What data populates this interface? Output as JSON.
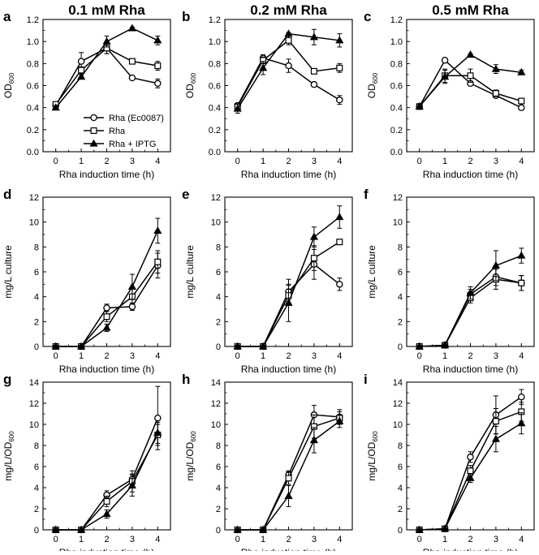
{
  "figure": {
    "legend": [
      {
        "label": "Rha (Ec0087)",
        "marker": "circle-open"
      },
      {
        "label": "Rha",
        "marker": "square-open"
      },
      {
        "label": "Rha + IPTG",
        "marker": "triangle-filled"
      }
    ],
    "colors": {
      "line": "#000000",
      "background": "#ffffff"
    }
  },
  "chart_data": [
    {
      "type": "line",
      "panel": "a",
      "title": "0.1 mM Rha",
      "xlabel": "Rha induction time (h)",
      "ylabel": "OD",
      "ylabel_sub": "600",
      "x": [
        0,
        1,
        2,
        3,
        4
      ],
      "xticks": [
        "0",
        "1",
        "2",
        "3",
        "4"
      ],
      "xlim": [
        -0.5,
        4.5
      ],
      "ylim": [
        0,
        1.2
      ],
      "yticks": [
        "0.0",
        "0.2",
        "0.4",
        "0.6",
        "0.8",
        "1.0",
        "1.2"
      ],
      "show_legend": true,
      "series": [
        {
          "name": "Rha (Ec0087)",
          "values": [
            0.42,
            0.82,
            0.94,
            0.67,
            0.62
          ],
          "errors": [
            0.02,
            0.08,
            0.05,
            0.01,
            0.04
          ]
        },
        {
          "name": "Rha",
          "values": [
            0.43,
            0.74,
            0.94,
            0.82,
            0.78
          ],
          "errors": [
            0.02,
            0.03,
            0.05,
            0.02,
            0.04
          ]
        },
        {
          "name": "Rha + IPTG",
          "values": [
            0.4,
            0.68,
            1.0,
            1.12,
            1.01
          ],
          "errors": [
            0.02,
            0.02,
            0.05,
            0.01,
            0.04
          ]
        }
      ]
    },
    {
      "type": "line",
      "panel": "b",
      "title": "0.2 mM Rha",
      "xlabel": "Rha induction time (h)",
      "ylabel": "OD",
      "ylabel_sub": "600",
      "x": [
        0,
        1,
        2,
        3,
        4
      ],
      "xticks": [
        "0",
        "1",
        "2",
        "3",
        "4"
      ],
      "xlim": [
        -0.5,
        4.5
      ],
      "ylim": [
        0,
        1.2
      ],
      "yticks": [
        "0.0",
        "0.2",
        "0.4",
        "0.6",
        "0.8",
        "1.0",
        "1.2"
      ],
      "series": [
        {
          "name": "Rha (Ec0087)",
          "values": [
            0.42,
            0.85,
            0.78,
            0.61,
            0.47
          ],
          "errors": [
            0.02,
            0.03,
            0.06,
            0.02,
            0.04
          ]
        },
        {
          "name": "Rha",
          "values": [
            0.41,
            0.83,
            1.01,
            0.73,
            0.76
          ],
          "errors": [
            0.02,
            0.03,
            0.04,
            0.02,
            0.04
          ]
        },
        {
          "name": "Rha + IPTG",
          "values": [
            0.39,
            0.76,
            1.07,
            1.04,
            1.01
          ],
          "errors": [
            0.04,
            0.06,
            0.01,
            0.07,
            0.06
          ]
        }
      ]
    },
    {
      "type": "line",
      "panel": "c",
      "title": "0.5 mM Rha",
      "xlabel": "Rha induction time (h)",
      "ylabel": "OD",
      "ylabel_sub": "600",
      "x": [
        0,
        1,
        2,
        3,
        4
      ],
      "xticks": [
        "0",
        "1",
        "2",
        "3",
        "4"
      ],
      "xlim": [
        -0.5,
        4.5
      ],
      "ylim": [
        0,
        1.2
      ],
      "yticks": [
        "0.0",
        "0.2",
        "0.4",
        "0.6",
        "0.8",
        "1.0",
        "1.2"
      ],
      "series": [
        {
          "name": "Rha (Ec0087)",
          "values": [
            0.41,
            0.83,
            0.62,
            0.51,
            0.4
          ],
          "errors": [
            0.02,
            0.02,
            0.02,
            0.02,
            0.02
          ]
        },
        {
          "name": "Rha",
          "values": [
            0.41,
            0.69,
            0.69,
            0.53,
            0.46
          ],
          "errors": [
            0.02,
            0.06,
            0.06,
            0.03,
            0.02
          ]
        },
        {
          "name": "Rha + IPTG",
          "values": [
            0.41,
            0.68,
            0.88,
            0.75,
            0.72
          ],
          "errors": [
            0.02,
            0.06,
            0.01,
            0.04,
            0.02
          ]
        }
      ]
    },
    {
      "type": "line",
      "panel": "d",
      "xlabel": "Rha induction time (h)",
      "ylabel": "mg/L culture",
      "x": [
        0,
        1,
        2,
        3,
        4
      ],
      "xticks": [
        "0",
        "1",
        "2",
        "3",
        "4"
      ],
      "xlim": [
        -0.5,
        4.5
      ],
      "ylim": [
        0,
        12
      ],
      "yticks": [
        "0",
        "2",
        "4",
        "6",
        "8",
        "10",
        "12"
      ],
      "series": [
        {
          "name": "Rha (Ec0087)",
          "values": [
            0,
            0,
            3.1,
            3.2,
            6.5
          ],
          "errors": [
            0.1,
            0.1,
            0.3,
            0.3,
            1.0
          ]
        },
        {
          "name": "Rha",
          "values": [
            0,
            0,
            2.4,
            4.0,
            6.8
          ],
          "errors": [
            0.1,
            0.1,
            0.4,
            0.6,
            0.9
          ]
        },
        {
          "name": "Rha + IPTG",
          "values": [
            0,
            0,
            1.5,
            4.8,
            9.3
          ],
          "errors": [
            0.1,
            0.1,
            0.3,
            1.0,
            1.0
          ]
        }
      ]
    },
    {
      "type": "line",
      "panel": "e",
      "xlabel": "Rha induction time (h)",
      "ylabel": "mg/L culture",
      "x": [
        0,
        1,
        2,
        3,
        4
      ],
      "xticks": [
        "0",
        "1",
        "2",
        "3",
        "4"
      ],
      "xlim": [
        -0.5,
        4.5
      ],
      "ylim": [
        0,
        12
      ],
      "yticks": [
        "0",
        "2",
        "4",
        "6",
        "8",
        "10",
        "12"
      ],
      "series": [
        {
          "name": "Rha (Ec0087)",
          "values": [
            0,
            0,
            4.4,
            6.6,
            5.0
          ],
          "errors": [
            0.1,
            0.1,
            1.0,
            1.2,
            0.5
          ]
        },
        {
          "name": "Rha",
          "values": [
            0,
            0,
            4.1,
            7.1,
            8.4
          ],
          "errors": [
            0.1,
            0.1,
            0.8,
            1.0,
            0.2
          ]
        },
        {
          "name": "Rha + IPTG",
          "values": [
            0,
            0,
            3.5,
            8.8,
            10.4
          ],
          "errors": [
            0.1,
            0.1,
            1.5,
            0.8,
            0.9
          ]
        }
      ]
    },
    {
      "type": "line",
      "panel": "f",
      "xlabel": "Rha induction time (h)",
      "ylabel": "mg/L culture",
      "x": [
        0,
        1,
        2,
        3,
        4
      ],
      "xticks": [
        "0",
        "1",
        "2",
        "3",
        "4"
      ],
      "xlim": [
        -0.5,
        4.5
      ],
      "ylim": [
        0,
        12
      ],
      "yticks": [
        "0",
        "2",
        "4",
        "6",
        "8",
        "10",
        "12"
      ],
      "series": [
        {
          "name": "Rha (Ec0087)",
          "values": [
            0,
            0.1,
            4.2,
            5.6,
            5.1
          ],
          "errors": [
            0.1,
            0.1,
            0.4,
            0.7,
            0.6
          ]
        },
        {
          "name": "Rha",
          "values": [
            0,
            0.1,
            3.9,
            5.4,
            5.1
          ],
          "errors": [
            0.1,
            0.1,
            0.4,
            0.8,
            0.6
          ]
        },
        {
          "name": "Rha + IPTG",
          "values": [
            0,
            0.1,
            4.3,
            6.5,
            7.3
          ],
          "errors": [
            0.1,
            0.1,
            0.5,
            1.2,
            0.6
          ]
        }
      ]
    },
    {
      "type": "line",
      "panel": "g",
      "xlabel": "Rha induction time (h)",
      "ylabel": "mg/L/OD",
      "ylabel_sub": "600",
      "x": [
        0,
        1,
        2,
        3,
        4
      ],
      "xticks": [
        "0",
        "1",
        "2",
        "3",
        "4"
      ],
      "xlim": [
        -0.5,
        4.5
      ],
      "ylim": [
        0,
        14
      ],
      "yticks": [
        "0",
        "2",
        "4",
        "6",
        "8",
        "10",
        "12",
        "14"
      ],
      "series": [
        {
          "name": "Rha (Ec0087)",
          "values": [
            0,
            0,
            3.3,
            4.8,
            10.6
          ],
          "errors": [
            0.1,
            0.1,
            0.4,
            0.5,
            3.0
          ]
        },
        {
          "name": "Rha",
          "values": [
            0,
            0,
            2.7,
            4.6,
            9.0
          ],
          "errors": [
            0.1,
            0.1,
            0.5,
            1.0,
            1.0
          ]
        },
        {
          "name": "Rha + IPTG",
          "values": [
            0,
            0,
            1.5,
            4.2,
            9.2
          ],
          "errors": [
            0.1,
            0.1,
            0.4,
            1.0,
            1.0
          ]
        }
      ]
    },
    {
      "type": "line",
      "panel": "h",
      "xlabel": "Rha induction time (h)",
      "ylabel": "mg/L/OD",
      "ylabel_sub": "600",
      "x": [
        0,
        1,
        2,
        3,
        4
      ],
      "xticks": [
        "0",
        "1",
        "2",
        "3",
        "4"
      ],
      "xlim": [
        -0.5,
        4.5
      ],
      "ylim": [
        0,
        14
      ],
      "yticks": [
        "0",
        "2",
        "4",
        "6",
        "8",
        "10",
        "12",
        "14"
      ],
      "series": [
        {
          "name": "Rha (Ec0087)",
          "values": [
            0,
            0,
            5.2,
            10.9,
            10.7
          ],
          "errors": [
            0.1,
            0.1,
            0.4,
            0.9,
            0.7
          ]
        },
        {
          "name": "Rha",
          "values": [
            0,
            0,
            4.9,
            9.8,
            10.6
          ],
          "errors": [
            0.1,
            0.1,
            0.6,
            1.1,
            0.6
          ]
        },
        {
          "name": "Rha + IPTG",
          "values": [
            0,
            0,
            3.2,
            8.5,
            10.3
          ],
          "errors": [
            0.1,
            0.1,
            1.0,
            1.2,
            0.6
          ]
        }
      ]
    },
    {
      "type": "line",
      "panel": "i",
      "xlabel": "Rha induction time (h)",
      "ylabel": "mg/L/OD",
      "ylabel_sub": "600",
      "x": [
        0,
        1,
        2,
        3,
        4
      ],
      "xticks": [
        "0",
        "1",
        "2",
        "3",
        "4"
      ],
      "xlim": [
        -0.5,
        4.5
      ],
      "ylim": [
        0,
        14
      ],
      "yticks": [
        "0",
        "2",
        "4",
        "6",
        "8",
        "10",
        "12",
        "14"
      ],
      "series": [
        {
          "name": "Rha (Ec0087)",
          "values": [
            0,
            0.1,
            6.9,
            10.9,
            12.6
          ],
          "errors": [
            0.1,
            0.1,
            0.5,
            1.8,
            0.7
          ]
        },
        {
          "name": "Rha",
          "values": [
            0,
            0.1,
            5.6,
            10.3,
            11.2
          ],
          "errors": [
            0.1,
            0.1,
            0.5,
            1.2,
            0.9
          ]
        },
        {
          "name": "Rha + IPTG",
          "values": [
            0,
            0.1,
            4.9,
            8.6,
            10.1
          ],
          "errors": [
            0.1,
            0.1,
            0.4,
            1.2,
            1.0
          ]
        }
      ]
    }
  ]
}
